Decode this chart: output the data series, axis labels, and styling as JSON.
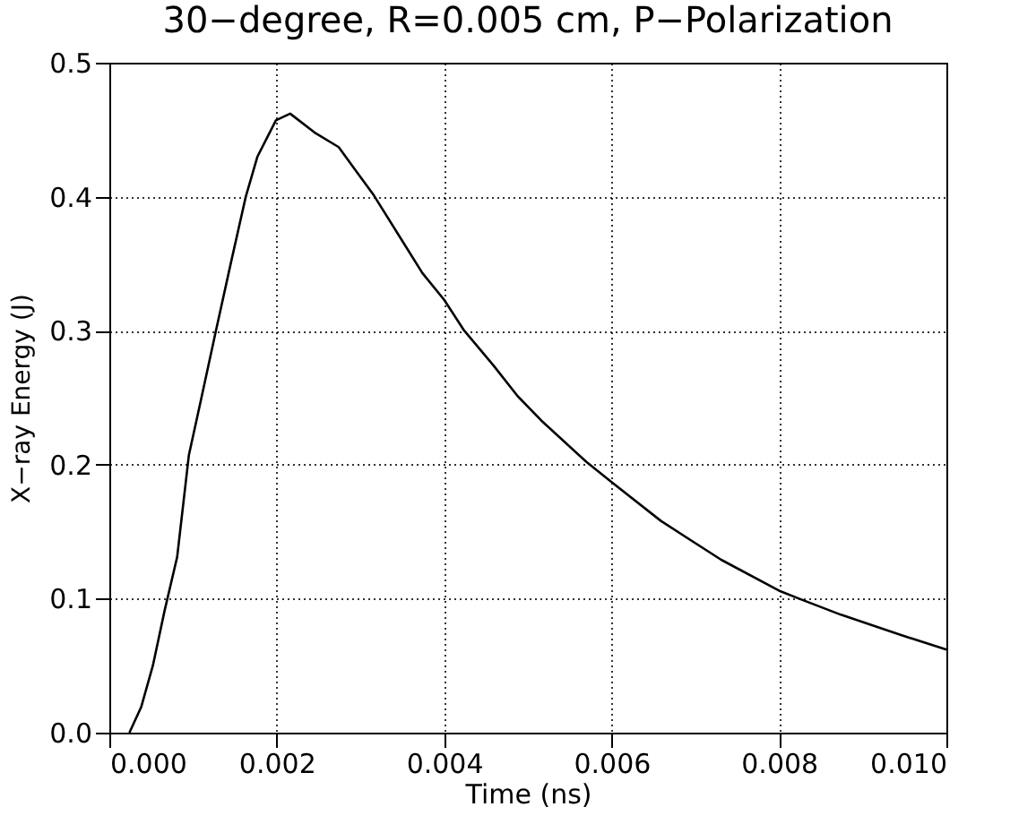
{
  "chart_data": {
    "type": "line",
    "title": "30−degree, R=0.005 cm, P−Polarization",
    "xlabel": "Time (ns)",
    "ylabel": "X−ray Energy (J)",
    "x": [
      0.00024,
      0.00038,
      0.00052,
      0.00066,
      0.00081,
      0.00095,
      0.00109,
      0.00127,
      0.00145,
      0.00163,
      0.00177,
      0.00199,
      0.00216,
      0.00245,
      0.00274,
      0.00295,
      0.00316,
      0.00345,
      0.00374,
      0.004,
      0.00424,
      0.00459,
      0.00488,
      0.00516,
      0.0057,
      0.006,
      0.00659,
      0.00731,
      0.008,
      0.00824,
      0.00874,
      0.00945,
      0.01
    ],
    "series": [
      {
        "color": "#000000",
        "values": [
          0,
          0.019,
          0.05,
          0.091,
          0.131,
          0.207,
          0.247,
          0.299,
          0.35,
          0.4,
          0.43,
          0.457,
          0.462,
          0.448,
          0.437,
          0.419,
          0.401,
          0.372,
          0.343,
          0.323,
          0.3,
          0.274,
          0.251,
          0.233,
          0.202,
          0.187,
          0.158,
          0.129,
          0.106,
          0.1,
          0.088,
          0.073,
          0.062
        ]
      }
    ],
    "xlim": [
      0,
      0.01
    ],
    "ylim": [
      0,
      0.5
    ],
    "xticks": [
      {
        "value": 0,
        "label": "0.000"
      },
      {
        "value": 0.002,
        "label": "0.002"
      },
      {
        "value": 0.004,
        "label": "0.004"
      },
      {
        "value": 0.006,
        "label": "0.006"
      },
      {
        "value": 0.008,
        "label": "0.008"
      },
      {
        "value": 0.01,
        "label": "0.010"
      }
    ],
    "yticks": [
      {
        "value": 0,
        "label": "0.0"
      },
      {
        "value": 0.1,
        "label": "0.1"
      },
      {
        "value": 0.2,
        "label": "0.2"
      },
      {
        "value": 0.3,
        "label": "0.3"
      },
      {
        "value": 0.4,
        "label": "0.4"
      },
      {
        "value": 0.5,
        "label": "0.5"
      }
    ],
    "grid": true,
    "line_style": "solid"
  }
}
